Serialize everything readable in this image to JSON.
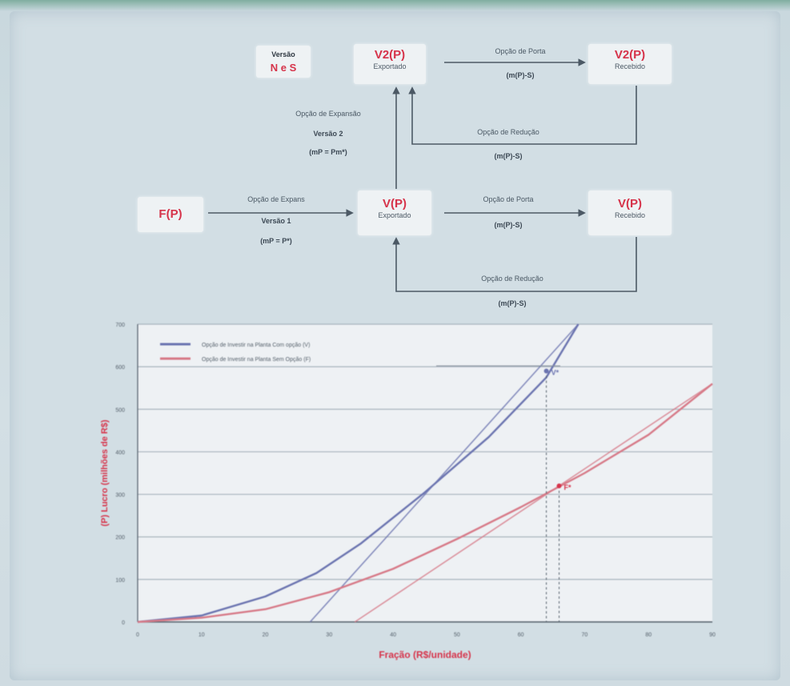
{
  "diagram": {
    "legend_box": {
      "title": "Versão",
      "value": "N e S"
    },
    "nodes": {
      "top_left": {
        "main": "V2(P)",
        "sub": "Exportado"
      },
      "top_right": {
        "main": "V2(P)",
        "sub": "Recebido"
      },
      "mid_left": {
        "main": "V(P)",
        "sub": "Exportado"
      },
      "mid_right": {
        "main": "V(P)",
        "sub": "Recebido"
      },
      "source": {
        "main": "F(P)"
      }
    },
    "edges": {
      "top_forward": {
        "label": "Opção de Porta",
        "formula": "(m(P)-S)"
      },
      "top_return": {
        "label": "Opção de Redução",
        "formula": "(m(P)-S)"
      },
      "up_link": {
        "label": "Opção de Expansão",
        "version": "Versão 2",
        "formula": "(mP = Pm*)"
      },
      "source_link": {
        "label": "Opção de Expans",
        "version": "Versão 1",
        "formula": "(mP = P*)"
      },
      "mid_forward": {
        "label": "Opção de Porta",
        "formula": "(m(P)-S)"
      },
      "mid_return": {
        "label": "Opção de Redução",
        "formula": "(m(P)-S)"
      }
    }
  },
  "chart_data": {
    "type": "line",
    "xlabel": "Fração (R$/unidade)",
    "ylabel": "(P) Lucro (milhões de R$)",
    "xlim": [
      0,
      90
    ],
    "ylim": [
      0,
      700
    ],
    "x_ticks": [
      0,
      10,
      20,
      30,
      40,
      50,
      60,
      70,
      80,
      90
    ],
    "y_ticks": [
      0,
      100,
      200,
      300,
      400,
      500,
      600,
      700
    ],
    "grid": true,
    "legend_position": "top-left",
    "series": [
      {
        "name": "Opção de Investir na Planta Com opção (V)",
        "color": "#6b74b0",
        "x": [
          0,
          10,
          20,
          28,
          35,
          45,
          55,
          64,
          69
        ],
        "y": [
          0,
          15,
          60,
          115,
          185,
          305,
          435,
          575,
          700
        ]
      },
      {
        "name": "Opção de Investir na Planta Sem Opção (F)",
        "color": "#d77a88",
        "x": [
          0,
          10,
          20,
          30,
          40,
          50,
          60,
          70,
          80,
          90
        ],
        "y": [
          0,
          10,
          30,
          70,
          125,
          195,
          270,
          350,
          440,
          560
        ]
      }
    ],
    "asymptotes": [
      {
        "color": "#6b74b0",
        "x": [
          27,
          69
        ],
        "y": [
          0,
          700
        ]
      },
      {
        "color": "#d77a88",
        "x": [
          34,
          90
        ],
        "y": [
          0,
          560
        ]
      }
    ],
    "markers": [
      {
        "label": "V*",
        "x": 64,
        "y": 590,
        "color": "#6b74b0"
      },
      {
        "label": "F*",
        "x": 66,
        "y": 320,
        "color": "#d6334a"
      }
    ]
  }
}
